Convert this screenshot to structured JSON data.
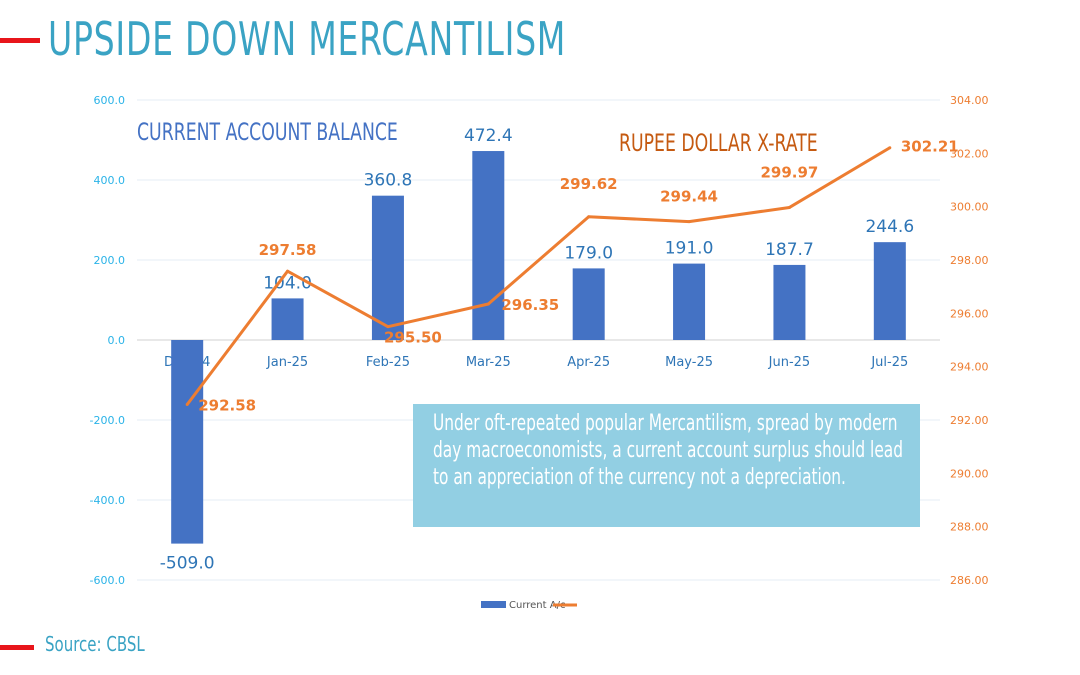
{
  "title": "UPSIDE DOWN MERCANTILISM",
  "source": "Source: CBSL",
  "callout": "Under oft-repeated popular Mercantilism, spread by modern day macroeconomists, a current account surplus should lead to an appreciation of the currency not a depreciation.",
  "chart_data": {
    "type": "bar+line",
    "categories": [
      "Dec-24",
      "Jan-25",
      "Feb-25",
      "Mar-25",
      "Apr-25",
      "May-25",
      "Jun-25",
      "Jul-25"
    ],
    "series": [
      {
        "name": "Current A/c",
        "type": "bar",
        "axis": "left",
        "values": [
          -509.0,
          104.0,
          360.8,
          472.4,
          179.0,
          191.0,
          187.7,
          244.6
        ],
        "labels": [
          "-509.0",
          "104.0",
          "360.8",
          "472.4",
          "179.0",
          "191.0",
          "187.7",
          "244.6"
        ]
      },
      {
        "name": "",
        "type": "line",
        "axis": "right",
        "values": [
          292.58,
          297.58,
          295.5,
          296.35,
          299.62,
          299.44,
          299.97,
          302.21
        ],
        "labels": [
          "292.58",
          "297.58",
          "295.50",
          "296.35",
          "299.62",
          "299.44",
          "299.97",
          "302.21"
        ]
      }
    ],
    "annotations": [
      "CURRENT ACCOUNT BALANCE",
      "RUPEE DOLLAR X-RATE"
    ],
    "left_axis": {
      "range": [
        -600,
        600
      ],
      "ticks": [
        "600.0",
        "400.0",
        "200.0",
        "0.0",
        "-200.0",
        "-400.0",
        "-600.0"
      ]
    },
    "right_axis": {
      "range": [
        286,
        304
      ],
      "ticks": [
        "304.00",
        "302.00",
        "300.00",
        "298.00",
        "296.00",
        "294.00",
        "292.00",
        "290.00",
        "288.00",
        "286.00"
      ]
    },
    "grid": true,
    "legend": "bottom",
    "colors": {
      "bar": "#4472c4",
      "line": "#ed7d31",
      "left_axis": "#2ab3e8",
      "right_axis": "#ed7d31",
      "bar_label": "#2e75b6",
      "title_bar": "#4472c4",
      "title_line": "#c55a11"
    }
  }
}
